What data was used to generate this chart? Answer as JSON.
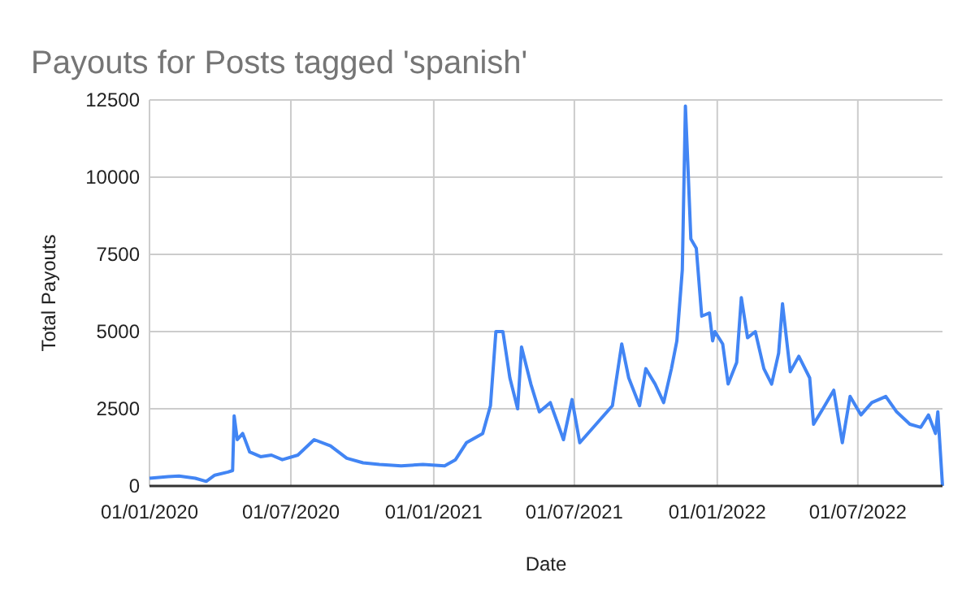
{
  "chart_data": {
    "type": "line",
    "title": "Payouts for Posts tagged 'spanish'",
    "xlabel": "Date",
    "ylabel": "Total Payouts",
    "x": [
      "2020-01-01",
      "2020-01-25",
      "2020-02-08",
      "2020-02-29",
      "2020-03-14",
      "2020-03-25",
      "2020-04-11",
      "2020-04-17",
      "2020-04-19",
      "2020-04-23",
      "2020-04-30",
      "2020-05-09",
      "2020-05-23",
      "2020-06-06",
      "2020-06-20",
      "2020-07-10",
      "2020-07-31",
      "2020-08-21",
      "2020-09-11",
      "2020-10-02",
      "2020-10-23",
      "2020-11-20",
      "2020-12-18",
      "2021-01-15",
      "2021-01-29",
      "2021-02-12",
      "2021-03-05",
      "2021-03-15",
      "2021-03-22",
      "2021-03-31",
      "2021-04-09",
      "2021-04-19",
      "2021-04-24",
      "2021-05-06",
      "2021-05-17",
      "2021-05-31",
      "2021-06-17",
      "2021-06-28",
      "2021-07-08",
      "2021-07-29",
      "2021-08-19",
      "2021-08-31",
      "2021-09-09",
      "2021-09-23",
      "2021-10-01",
      "2021-10-13",
      "2021-10-24",
      "2021-11-03",
      "2021-11-10",
      "2021-11-17",
      "2021-11-21",
      "2021-11-24",
      "2021-11-28",
      "2021-12-05",
      "2021-12-12",
      "2021-12-22",
      "2021-12-26",
      "2021-12-29",
      "2022-01-08",
      "2022-01-15",
      "2022-01-26",
      "2022-02-01",
      "2022-02-09",
      "2022-02-19",
      "2022-03-02",
      "2022-03-12",
      "2022-03-21",
      "2022-03-26",
      "2022-04-05",
      "2022-04-16",
      "2022-04-30",
      "2022-05-05",
      "2022-05-17",
      "2022-05-31",
      "2022-06-11",
      "2022-06-21",
      "2022-07-05",
      "2022-07-19",
      "2022-08-06",
      "2022-08-20",
      "2022-09-06",
      "2022-09-20",
      "2022-09-30",
      "2022-10-09",
      "2022-10-12",
      "2022-10-18"
    ],
    "series": [
      {
        "color": "#4285f4",
        "values": [
          250,
          300,
          320,
          250,
          150,
          350,
          450,
          500,
          2270,
          1500,
          1700,
          1100,
          950,
          1000,
          850,
          1000,
          1500,
          1300,
          900,
          750,
          700,
          650,
          700,
          650,
          850,
          1400,
          1700,
          2600,
          5000,
          5000,
          3500,
          2500,
          4500,
          3300,
          2400,
          2700,
          1500,
          2800,
          1400,
          2000,
          2600,
          4600,
          3500,
          2600,
          3800,
          3300,
          2700,
          3800,
          4700,
          7000,
          12300,
          10500,
          8000,
          7700,
          5500,
          5600,
          4700,
          5000,
          4600,
          3300,
          4000,
          6100,
          4800,
          5000,
          3800,
          3300,
          4300,
          5900,
          3700,
          4200,
          3500,
          2000,
          2500,
          3100,
          1400,
          2900,
          2300,
          2700,
          2900,
          2400,
          2000,
          1900,
          2300,
          1700,
          2400,
          0
        ]
      }
    ],
    "xlim": [
      "2020-01-01",
      "2022-10-18"
    ],
    "xticks": [
      {
        "value": "2020-01-01",
        "label": "01/01/2020"
      },
      {
        "value": "2020-07-01",
        "label": "01/07/2020"
      },
      {
        "value": "2021-01-01",
        "label": "01/01/2021"
      },
      {
        "value": "2021-07-01",
        "label": "01/07/2021"
      },
      {
        "value": "2022-01-01",
        "label": "01/01/2022"
      },
      {
        "value": "2022-07-01",
        "label": "01/07/2022"
      }
    ],
    "ylim": [
      0,
      12500
    ],
    "yticks": [
      0,
      2500,
      5000,
      7500,
      10000,
      12500
    ],
    "grid": true
  }
}
